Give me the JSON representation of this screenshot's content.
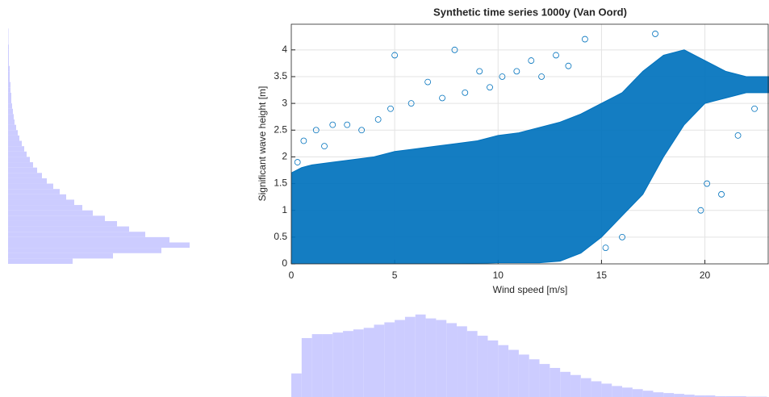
{
  "chart_data": [
    {
      "type": "scatter",
      "title": "Synthetic time series 1000y (Van Oord)",
      "xlabel": "Wind speed [m/s]",
      "ylabel": "Significant wave height [m]",
      "xlim": [
        0,
        23.1
      ],
      "ylim": [
        0,
        4.48
      ],
      "xticks": [
        0,
        5,
        10,
        15,
        20
      ],
      "yticks": [
        0,
        0.5,
        1,
        1.5,
        2,
        2.5,
        3,
        3.5,
        4
      ],
      "grid": true,
      "color": "#0072bd",
      "cloud": {
        "x": [
          0,
          0.5,
          1,
          2,
          3,
          4,
          5,
          6,
          7,
          8,
          9,
          10,
          11,
          12,
          13,
          14,
          15,
          16,
          17,
          18,
          19,
          20,
          21,
          22,
          23.1
        ],
        "upper": [
          1.7,
          1.8,
          1.85,
          1.9,
          1.95,
          2.0,
          2.1,
          2.15,
          2.2,
          2.25,
          2.3,
          2.4,
          2.45,
          2.55,
          2.65,
          2.8,
          3.0,
          3.2,
          3.6,
          3.9,
          4.0,
          3.8,
          3.6,
          3.5,
          3.5
        ],
        "lower": [
          0,
          0,
          0,
          0,
          0,
          0,
          0,
          0,
          0,
          0,
          0.01,
          0.02,
          0.02,
          0.02,
          0.05,
          0.2,
          0.5,
          0.9,
          1.3,
          2.0,
          2.6,
          3.0,
          3.1,
          3.2,
          3.2
        ]
      },
      "x": [
        0.6,
        1.2,
        2.0,
        2.7,
        3.4,
        4.2,
        5.0,
        5.8,
        6.6,
        7.3,
        7.9,
        8.4,
        9.1,
        9.6,
        10.2,
        10.9,
        11.6,
        12.1,
        12.8,
        13.4,
        14.2,
        0.3,
        1.6,
        4.8,
        15.2,
        16.0,
        20.1,
        20.8,
        21.6,
        22.4,
        19.8,
        17.6
      ],
      "y": [
        2.3,
        2.5,
        2.6,
        2.6,
        2.5,
        2.7,
        3.9,
        3.0,
        3.4,
        3.1,
        4.0,
        3.2,
        3.6,
        3.3,
        3.5,
        3.6,
        3.8,
        3.5,
        3.9,
        3.7,
        4.2,
        1.9,
        2.2,
        2.9,
        0.3,
        0.5,
        1.5,
        1.3,
        2.4,
        2.9,
        1.0,
        4.3
      ]
    },
    {
      "type": "histogram",
      "orientation": "horizontal",
      "color": "#ccccff",
      "xlim": [
        0,
        240
      ],
      "ylim": [
        0,
        4.48
      ],
      "bins": [
        0,
        0.1,
        0.2,
        0.3,
        0.4,
        0.5,
        0.6,
        0.7,
        0.8,
        0.9,
        1.0,
        1.1,
        1.2,
        1.3,
        1.4,
        1.5,
        1.6,
        1.7,
        1.8,
        1.9,
        2.0,
        2.1,
        2.2,
        2.3,
        2.4,
        2.5,
        2.6,
        2.7,
        2.8,
        2.9,
        3.0,
        3.1,
        3.2,
        3.3,
        3.4,
        3.5,
        3.6,
        3.7,
        3.8,
        3.9,
        4.0,
        4.1,
        4.2,
        4.3,
        4.4
      ],
      "counts": [
        80,
        130,
        190,
        225,
        200,
        170,
        150,
        135,
        120,
        105,
        92,
        82,
        72,
        64,
        56,
        48,
        42,
        36,
        31,
        27,
        23,
        20,
        17,
        14,
        12,
        10,
        8,
        7,
        6,
        5,
        4,
        4,
        3,
        3,
        2,
        2,
        2,
        1,
        1,
        1,
        1,
        0.5,
        0.5,
        0.5
      ]
    },
    {
      "type": "histogram",
      "orientation": "vertical",
      "color": "#ccccff",
      "xlim": [
        0,
        23.1
      ],
      "ylim": [
        0,
        115
      ],
      "bins": [
        0,
        0.5,
        1,
        1.5,
        2,
        2.5,
        3,
        3.5,
        4,
        4.5,
        5,
        5.5,
        6,
        6.5,
        7,
        7.5,
        8,
        8.5,
        9,
        9.5,
        10,
        10.5,
        11,
        11.5,
        12,
        12.5,
        13,
        13.5,
        14,
        14.5,
        15,
        15.5,
        16,
        16.5,
        17,
        17.5,
        18,
        18.5,
        19,
        19.5,
        20,
        20.5,
        21,
        21.5,
        22,
        22.5,
        23
      ],
      "counts": [
        30,
        75,
        80,
        80,
        82,
        84,
        86,
        88,
        92,
        95,
        98,
        102,
        105,
        100,
        98,
        94,
        90,
        84,
        78,
        72,
        66,
        60,
        54,
        48,
        42,
        37,
        32,
        28,
        24,
        20,
        17,
        14,
        12,
        10,
        8,
        6,
        5,
        4,
        3,
        2,
        2,
        1,
        1,
        1,
        0.5,
        0.5
      ]
    }
  ]
}
